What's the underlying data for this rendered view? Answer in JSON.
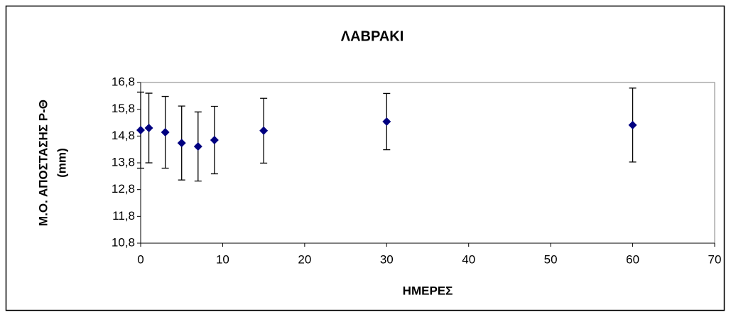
{
  "chart_data": {
    "type": "scatter",
    "title": "ΛΑΒΡΑΚΙ",
    "xlabel": "ΗΜΕΡΕΣ",
    "ylabel": [
      "Μ.Ο. ΑΠΟΣΤΑΣΗΣ Ρ-Θ",
      "(mm)"
    ],
    "x": [
      0,
      1,
      3,
      5,
      7,
      9,
      15,
      30,
      60
    ],
    "values": [
      15.02,
      15.1,
      14.94,
      14.54,
      14.41,
      14.65,
      15.0,
      15.34,
      15.21
    ],
    "errors": [
      1.42,
      1.3,
      1.34,
      1.38,
      1.29,
      1.26,
      1.21,
      1.05,
      1.38
    ],
    "color": "#000080",
    "xlim": [
      0,
      70
    ],
    "xticks": [
      0,
      10,
      20,
      30,
      40,
      50,
      60,
      70
    ],
    "ylim": [
      10.8,
      16.8
    ],
    "yticks": [
      {
        "value": 10.8,
        "label": "10,8"
      },
      {
        "value": 11.8,
        "label": "11,8"
      },
      {
        "value": 12.8,
        "label": "12,8"
      },
      {
        "value": 13.8,
        "label": "13,8"
      },
      {
        "value": 14.8,
        "label": "14,8"
      },
      {
        "value": 15.8,
        "label": "15,8"
      },
      {
        "value": 16.8,
        "label": "16,8"
      }
    ],
    "grid": false
  }
}
